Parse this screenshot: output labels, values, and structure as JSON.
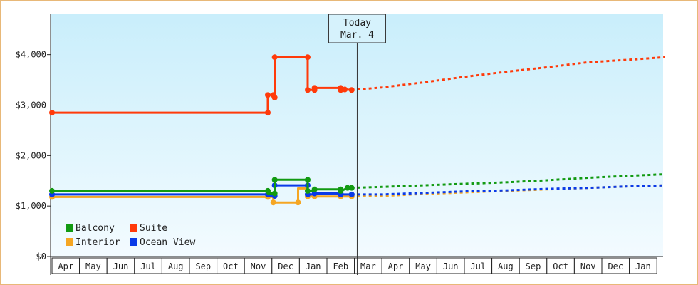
{
  "chart_data": {
    "type": "line",
    "title": "",
    "xlabel": "",
    "ylabel": "",
    "ylim": [
      0,
      4800
    ],
    "yticks": [
      0,
      1000,
      2000,
      3000,
      4000
    ],
    "ytick_labels": [
      "$0",
      "$1,000",
      "$2,000",
      "$3,000",
      "$4,000"
    ],
    "months": [
      "Apr",
      "May",
      "Jun",
      "Jul",
      "Aug",
      "Sep",
      "Oct",
      "Nov",
      "Dec",
      "Jan",
      "Feb",
      "Mar",
      "Apr",
      "May",
      "Jun",
      "Jul",
      "Aug",
      "Sep",
      "Oct",
      "Nov",
      "Dec",
      "Jan"
    ],
    "today": {
      "line1": "Today",
      "line2": "Mar. 4",
      "month_index": 11.1
    },
    "legend_placement": "bottom-left",
    "grid": false,
    "series": [
      {
        "name": "Balcony",
        "color": "#129a12",
        "values": [
          [
            0.0,
            1300
          ],
          [
            7.85,
            1300
          ],
          [
            7.85,
            1250
          ],
          [
            8.1,
            1250
          ],
          [
            8.1,
            1250
          ],
          [
            8.1,
            1520
          ],
          [
            9.3,
            1520
          ],
          [
            9.3,
            1300
          ],
          [
            9.55,
            1300
          ],
          [
            9.55,
            1330
          ],
          [
            10.5,
            1330
          ],
          [
            10.5,
            1300
          ],
          [
            10.6,
            1320
          ],
          [
            10.75,
            1360
          ],
          [
            10.9,
            1360
          ]
        ],
        "forecast": [
          [
            10.9,
            1360
          ],
          [
            12.0,
            1380
          ],
          [
            13.5,
            1410
          ],
          [
            15.0,
            1440
          ],
          [
            16.5,
            1470
          ],
          [
            18.0,
            1510
          ],
          [
            19.5,
            1560
          ],
          [
            21.0,
            1600
          ],
          [
            22.3,
            1630
          ]
        ]
      },
      {
        "name": "Suite",
        "color": "#ff3a0a",
        "values": [
          [
            0.0,
            2850
          ],
          [
            7.85,
            2850
          ],
          [
            7.85,
            3200
          ],
          [
            8.05,
            3200
          ],
          [
            8.05,
            3150
          ],
          [
            8.1,
            3150
          ],
          [
            8.1,
            3950
          ],
          [
            9.3,
            3950
          ],
          [
            9.3,
            3300
          ],
          [
            9.55,
            3300
          ],
          [
            9.55,
            3340
          ],
          [
            10.5,
            3340
          ],
          [
            10.5,
            3300
          ],
          [
            10.65,
            3310
          ],
          [
            10.9,
            3300
          ]
        ],
        "forecast": [
          [
            10.9,
            3300
          ],
          [
            12.0,
            3350
          ],
          [
            13.5,
            3450
          ],
          [
            15.0,
            3560
          ],
          [
            16.5,
            3660
          ],
          [
            18.0,
            3750
          ],
          [
            19.5,
            3850
          ],
          [
            21.0,
            3900
          ],
          [
            22.3,
            3950
          ]
        ]
      },
      {
        "name": "Interior",
        "color": "#f5a623",
        "values": [
          [
            0.0,
            1180
          ],
          [
            7.85,
            1180
          ],
          [
            7.85,
            1180
          ],
          [
            8.05,
            1180
          ],
          [
            8.05,
            1070
          ],
          [
            8.95,
            1070
          ],
          [
            8.95,
            1070
          ],
          [
            8.95,
            1350
          ],
          [
            9.3,
            1350
          ],
          [
            9.3,
            1190
          ],
          [
            9.55,
            1190
          ],
          [
            9.55,
            1190
          ],
          [
            10.5,
            1190
          ],
          [
            10.5,
            1190
          ],
          [
            10.9,
            1190
          ]
        ],
        "forecast": [
          [
            10.9,
            1190
          ],
          [
            12.0,
            1200
          ],
          [
            13.5,
            1240
          ],
          [
            15.0,
            1270
          ],
          [
            16.5,
            1300
          ],
          [
            18.0,
            1330
          ],
          [
            19.5,
            1360
          ],
          [
            21.0,
            1390
          ],
          [
            22.3,
            1410
          ]
        ]
      },
      {
        "name": "Ocean View",
        "color": "#0a3ae8",
        "values": [
          [
            0.0,
            1230
          ],
          [
            7.85,
            1230
          ],
          [
            7.85,
            1200
          ],
          [
            8.1,
            1200
          ],
          [
            8.1,
            1200
          ],
          [
            8.1,
            1410
          ],
          [
            9.3,
            1410
          ],
          [
            9.3,
            1230
          ],
          [
            9.55,
            1230
          ],
          [
            9.55,
            1250
          ],
          [
            10.5,
            1250
          ],
          [
            10.5,
            1230
          ],
          [
            10.7,
            1230
          ],
          [
            10.9,
            1230
          ]
        ],
        "forecast": [
          [
            10.9,
            1230
          ],
          [
            12.0,
            1230
          ],
          [
            13.5,
            1260
          ],
          [
            15.0,
            1290
          ],
          [
            16.5,
            1310
          ],
          [
            18.0,
            1340
          ],
          [
            19.5,
            1360
          ],
          [
            21.0,
            1390
          ],
          [
            22.3,
            1410
          ]
        ]
      }
    ],
    "markers": {
      "Balcony": [
        [
          0.0,
          1300
        ],
        [
          7.85,
          1300
        ],
        [
          8.1,
          1250
        ],
        [
          8.1,
          1520
        ],
        [
          9.3,
          1520
        ],
        [
          9.3,
          1300
        ],
        [
          9.55,
          1330
        ],
        [
          10.5,
          1330
        ],
        [
          10.5,
          1300
        ],
        [
          10.75,
          1360
        ],
        [
          10.9,
          1360
        ]
      ],
      "Suite": [
        [
          0.0,
          2850
        ],
        [
          7.85,
          2850
        ],
        [
          7.85,
          3200
        ],
        [
          8.05,
          3200
        ],
        [
          8.1,
          3150
        ],
        [
          8.1,
          3950
        ],
        [
          9.3,
          3950
        ],
        [
          9.3,
          3300
        ],
        [
          9.55,
          3340
        ],
        [
          9.55,
          3300
        ],
        [
          10.5,
          3340
        ],
        [
          10.5,
          3300
        ],
        [
          10.65,
          3310
        ],
        [
          10.9,
          3300
        ]
      ],
      "Interior": [
        [
          0.0,
          1180
        ],
        [
          7.85,
          1180
        ],
        [
          8.05,
          1070
        ],
        [
          8.95,
          1070
        ],
        [
          9.3,
          1190
        ],
        [
          9.55,
          1190
        ],
        [
          10.5,
          1190
        ],
        [
          10.9,
          1190
        ]
      ],
      "Ocean View": [
        [
          0.0,
          1230
        ],
        [
          7.85,
          1230
        ],
        [
          8.1,
          1200
        ],
        [
          8.1,
          1410
        ],
        [
          9.3,
          1410
        ],
        [
          9.3,
          1230
        ],
        [
          9.55,
          1250
        ],
        [
          10.5,
          1250
        ],
        [
          10.5,
          1230
        ],
        [
          10.9,
          1230
        ]
      ]
    }
  }
}
